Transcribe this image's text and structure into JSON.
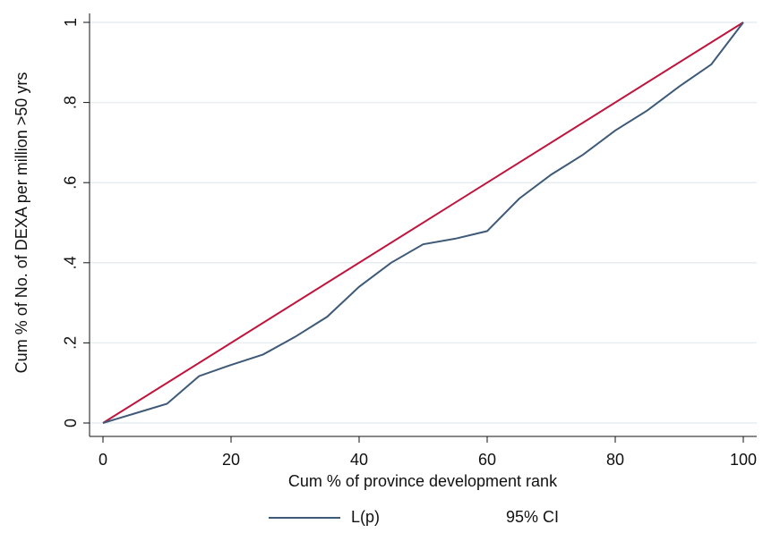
{
  "chart_data": {
    "type": "line",
    "x_label": "Cum % of province development rank",
    "y_label": "Cum % of No. of DEXA per million >50 yrs",
    "x": [
      0,
      5,
      10,
      15,
      20,
      25,
      30,
      35,
      40,
      45,
      50,
      55,
      60,
      65,
      70,
      75,
      80,
      85,
      90,
      95,
      100
    ],
    "series": [
      {
        "name": "L(p)",
        "color": "#3e5a78",
        "values": [
          0,
          0.024,
          0.048,
          0.117,
          0.145,
          0.171,
          0.215,
          0.265,
          0.34,
          0.4,
          0.446,
          0.46,
          0.479,
          0.56,
          0.62,
          0.67,
          0.73,
          0.78,
          0.84,
          0.895,
          1
        ]
      }
    ],
    "equality_line": {
      "x": [
        0,
        100
      ],
      "y": [
        0,
        1
      ],
      "color": "#c0143c"
    },
    "ci_legend_label": "95% CI",
    "xlim": [
      0,
      100
    ],
    "ylim": [
      0,
      1
    ],
    "xticks": [
      0,
      20,
      40,
      60,
      80,
      100
    ],
    "yticks": [
      0,
      {
        "value": 0.2,
        "label": ".2"
      },
      {
        "value": 0.4,
        "label": ".4"
      },
      {
        "value": 0.6,
        "label": ".6"
      },
      {
        "value": 0.8,
        "label": ".8"
      },
      1
    ],
    "grid": true
  }
}
